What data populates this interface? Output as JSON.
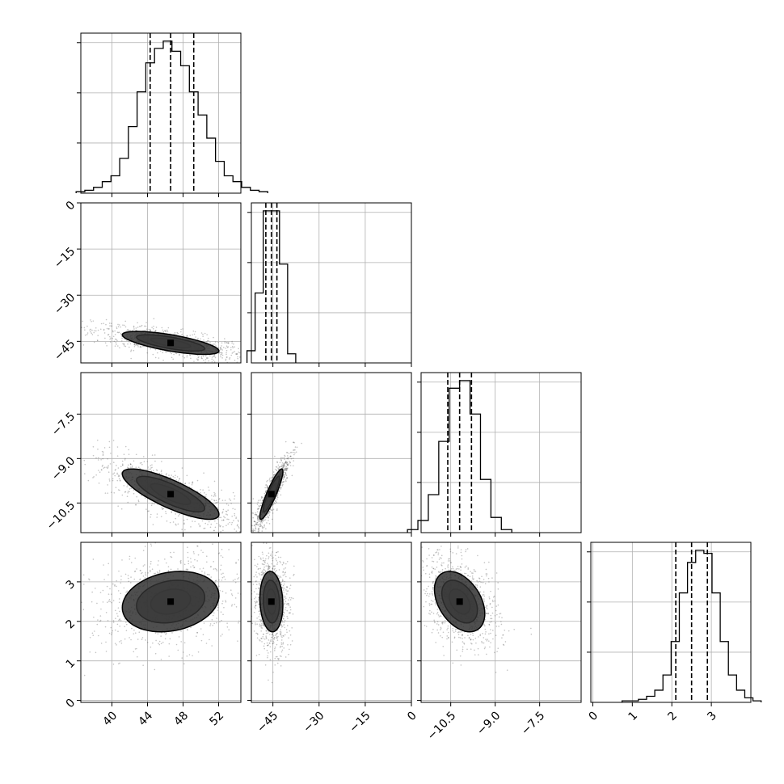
{
  "chart_data": {
    "type": "corner",
    "grid": true,
    "parameters": [
      {
        "range": [
          36.5,
          54.5
        ],
        "ticks": [
          "40",
          "44",
          "48",
          "52"
        ],
        "tick_values": [
          40,
          44,
          48,
          52
        ],
        "quantiles": [
          44.3,
          46.6,
          49.2
        ],
        "hist_counts": [
          1,
          2,
          4,
          8,
          12,
          24,
          46,
          70,
          90,
          100,
          105,
          98,
          88,
          70,
          54,
          38,
          22,
          12,
          8,
          4,
          2,
          1
        ]
      },
      {
        "range": [
          -52,
          0
        ],
        "ticks": [
          "0",
          "-15",
          "-30",
          "-45"
        ],
        "tick_values": [
          0,
          -15,
          -30,
          -45
        ],
        "quantiles": [
          -47.3,
          -45.5,
          -43.7
        ],
        "hist_counts": [
          8,
          46,
          100,
          100,
          65,
          6
        ]
      },
      {
        "range": [
          -11.5,
          -6.1
        ],
        "ticks": [
          "-7.5",
          "-9.0",
          "-10.5"
        ],
        "tick_values": [
          -7.5,
          -9.0,
          -10.5
        ],
        "quantiles": [
          -10.6,
          -10.2,
          -9.8
        ],
        "hist_counts": [
          2,
          8,
          25,
          60,
          95,
          100,
          78,
          35,
          10,
          2
        ]
      },
      {
        "range": [
          -0.05,
          4.0
        ],
        "ticks": [
          "0",
          "1",
          "2",
          "3"
        ],
        "tick_values": [
          0,
          1,
          2,
          3
        ],
        "quantiles": [
          2.1,
          2.5,
          2.9
        ],
        "hist_counts": [
          1,
          1,
          2,
          4,
          8,
          18,
          40,
          72,
          92,
          100,
          98,
          72,
          40,
          18,
          8,
          3,
          1
        ]
      }
    ],
    "pairs": [
      {
        "x": 0,
        "y": 1,
        "center": [
          46.6,
          -45.5
        ],
        "sigma": [
          3.2,
          2.2
        ],
        "rho": -0.7
      },
      {
        "x": 0,
        "y": 2,
        "center": [
          46.6,
          -10.2
        ],
        "sigma": [
          3.2,
          0.5
        ],
        "rho": -0.8
      },
      {
        "x": 1,
        "y": 2,
        "center": [
          -45.5,
          -10.2
        ],
        "sigma": [
          2.2,
          0.5
        ],
        "rho": 0.9
      },
      {
        "x": 0,
        "y": 3,
        "center": [
          46.6,
          2.5
        ],
        "sigma": [
          3.2,
          0.45
        ],
        "rho": 0.2
      },
      {
        "x": 1,
        "y": 3,
        "center": [
          -45.5,
          2.5
        ],
        "sigma": [
          2.2,
          0.45
        ],
        "rho": -0.1
      },
      {
        "x": 2,
        "y": 3,
        "center": [
          -10.2,
          2.5
        ],
        "sigma": [
          0.5,
          0.45
        ],
        "rho": -0.4
      }
    ],
    "contour_levels": [
      0.5,
      1.0,
      1.5,
      2.0
    ],
    "colors": {
      "axes": "#000000",
      "grid": "#b0b0b0",
      "density": "#000000",
      "points": "#555555"
    }
  }
}
